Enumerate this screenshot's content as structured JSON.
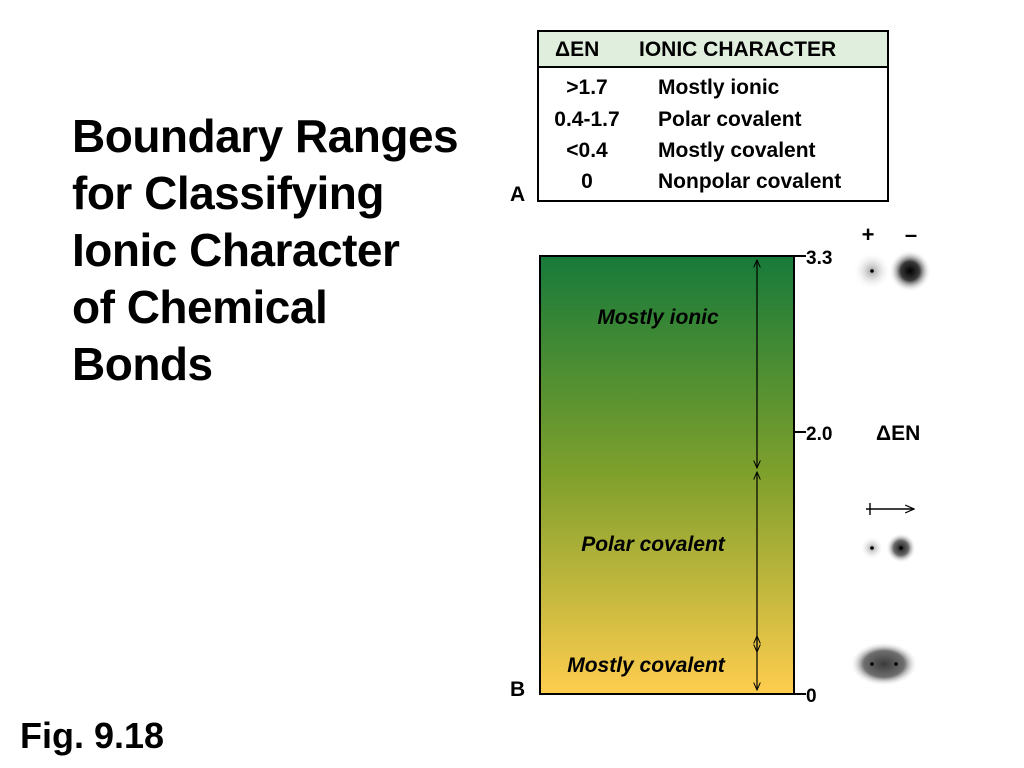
{
  "title": {
    "lines": [
      "Boundary Ranges",
      "for Classifying",
      "Ionic Character",
      "of Chemical",
      "Bonds"
    ]
  },
  "figure_label": "Fig. 9.18",
  "panel_labels": {
    "a": "A",
    "b": "B"
  },
  "table": {
    "headers": {
      "delta_en": "ΔEN",
      "ionic_character": "IONIC CHARACTER"
    },
    "rows": [
      {
        "range": ">1.7",
        "character": "Mostly ionic"
      },
      {
        "range": "0.4-1.7",
        "character": "Polar covalent"
      },
      {
        "range": "<0.4",
        "character": "Mostly covalent"
      },
      {
        "range": "0",
        "character": "Nonpolar covalent"
      }
    ]
  },
  "scale": {
    "axis_label": "ΔEN",
    "ticks": [
      "3.3",
      "2.0",
      "0"
    ],
    "regions": [
      "Mostly ionic",
      "Polar covalent",
      "Mostly covalent"
    ],
    "colors": {
      "top": "#177a3a",
      "mid": "#7fa02c",
      "bottom": "#ffcd4e"
    }
  },
  "charge_signs": {
    "plus": "+",
    "minus": "–"
  }
}
